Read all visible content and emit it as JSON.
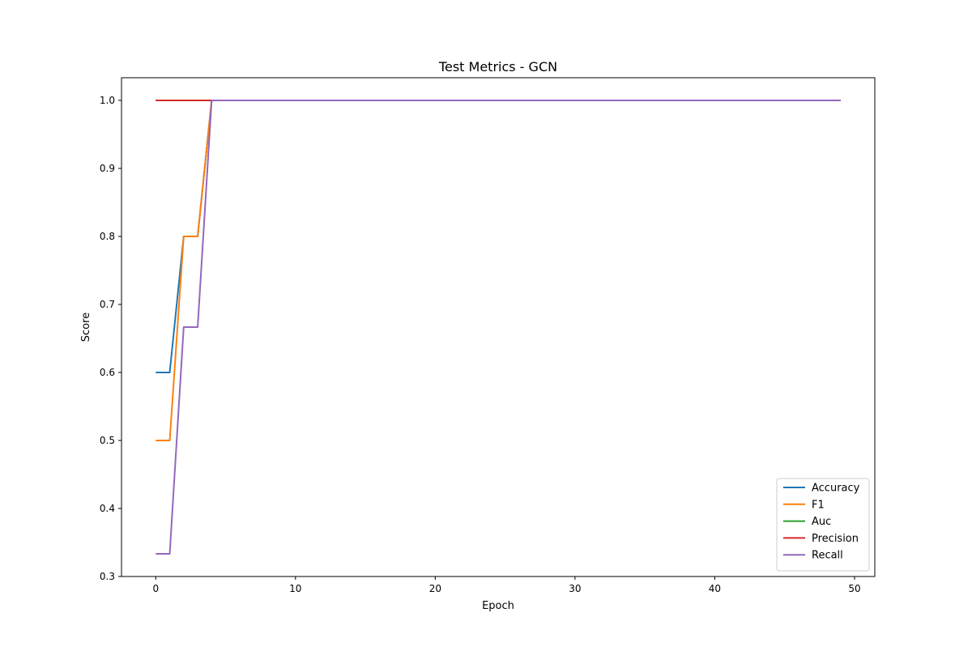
{
  "chart_data": {
    "type": "line",
    "title": "Test Metrics - GCN",
    "xlabel": "Epoch",
    "ylabel": "Score",
    "xlim": [
      -2.45,
      51.45
    ],
    "ylim": [
      0.3,
      1.0333
    ],
    "xticks": [
      0,
      10,
      20,
      30,
      40,
      50
    ],
    "yticks": [
      0.3,
      0.4,
      0.5,
      0.6,
      0.7,
      0.8,
      0.9,
      1.0
    ],
    "ytick_labels": [
      "0.3",
      "0.4",
      "0.5",
      "0.6",
      "0.7",
      "0.8",
      "0.9",
      "1.0"
    ],
    "grid": false,
    "legend_position": "lower right",
    "num_epochs": 50,
    "series": [
      {
        "name": "Accuracy",
        "color": "#1f77b4",
        "initial_values": [
          0.6,
          0.6,
          0.8,
          0.8,
          1.0
        ],
        "remaining_value": 1.0
      },
      {
        "name": "F1",
        "color": "#ff7f0e",
        "initial_values": [
          0.5,
          0.5,
          0.8,
          0.8,
          1.0
        ],
        "remaining_value": 1.0
      },
      {
        "name": "Auc",
        "color": "#2ca02c",
        "initial_values": [
          1.0,
          1.0,
          1.0,
          1.0,
          1.0
        ],
        "remaining_value": 1.0
      },
      {
        "name": "Precision",
        "color": "#d62728",
        "initial_values": [
          1.0,
          1.0,
          1.0,
          1.0,
          1.0
        ],
        "remaining_value": 1.0
      },
      {
        "name": "Recall",
        "color": "#9467bd",
        "initial_values": [
          0.3333,
          0.3333,
          0.6667,
          0.6667,
          1.0
        ],
        "remaining_value": 1.0
      }
    ]
  }
}
